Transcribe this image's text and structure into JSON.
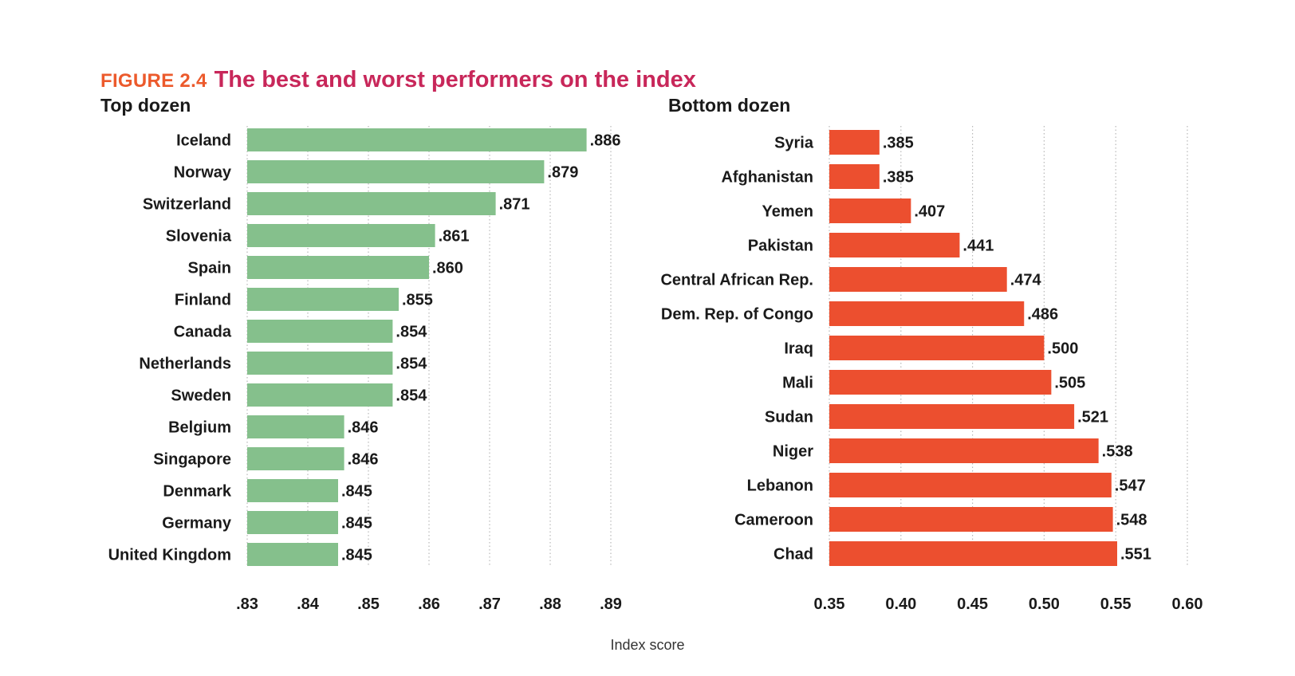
{
  "figure": {
    "number": "FIGURE 2.4",
    "title": "The best and worst performers on the index",
    "xlabel": "Index score"
  },
  "chart_data": [
    {
      "type": "bar",
      "orientation": "horizontal",
      "title": "Top dozen",
      "categories": [
        "Iceland",
        "Norway",
        "Switzerland",
        "Slovenia",
        "Spain",
        "Finland",
        "Canada",
        "Netherlands",
        "Sweden",
        "Belgium",
        "Singapore",
        "Denmark",
        "Germany",
        "United Kingdom"
      ],
      "values": [
        0.886,
        0.879,
        0.871,
        0.861,
        0.86,
        0.855,
        0.854,
        0.854,
        0.854,
        0.846,
        0.846,
        0.845,
        0.845,
        0.845
      ],
      "value_labels": [
        ".886",
        ".879",
        ".871",
        ".861",
        ".860",
        ".855",
        ".854",
        ".854",
        ".854",
        ".846",
        ".846",
        ".845",
        ".845",
        ".845"
      ],
      "xlim": [
        0.83,
        0.89
      ],
      "xticks": [
        0.83,
        0.84,
        0.85,
        0.86,
        0.87,
        0.88,
        0.89
      ],
      "xtick_labels": [
        ".83",
        ".84",
        ".85",
        ".86",
        ".87",
        ".88",
        ".89"
      ],
      "xlabel": "Index score",
      "color": "#85c08c",
      "grid": true
    },
    {
      "type": "bar",
      "orientation": "horizontal",
      "title": "Bottom dozen",
      "categories": [
        "Syria",
        "Afghanistan",
        "Yemen",
        "Pakistan",
        "Central African Rep.",
        "Dem. Rep. of Congo",
        "Iraq",
        "Mali",
        "Sudan",
        "Niger",
        "Lebanon",
        "Cameroon",
        "Chad"
      ],
      "values": [
        0.385,
        0.385,
        0.407,
        0.441,
        0.474,
        0.486,
        0.5,
        0.505,
        0.521,
        0.538,
        0.547,
        0.548,
        0.551
      ],
      "value_labels": [
        ".385",
        ".385",
        ".407",
        ".441",
        ".474",
        ".486",
        ".500",
        ".505",
        ".521",
        ".538",
        ".547",
        ".548",
        ".551"
      ],
      "xlim": [
        0.35,
        0.6
      ],
      "xticks": [
        0.35,
        0.4,
        0.45,
        0.5,
        0.55,
        0.6
      ],
      "xtick_labels": [
        "0.35",
        "0.40",
        "0.45",
        "0.50",
        "0.55",
        "0.60"
      ],
      "xlabel": "Index score",
      "color": "#ec4f2f",
      "grid": true
    }
  ]
}
